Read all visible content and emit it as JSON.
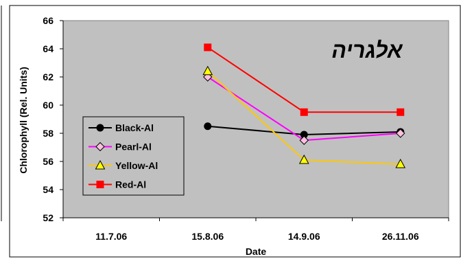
{
  "chart_data": {
    "type": "line",
    "title": "אלגריה",
    "xlabel": "Date",
    "ylabel": "Chlorophyll (Rel. Units)",
    "categories": [
      "11.7.06",
      "15.8.06",
      "14.9.06",
      "26.11.06"
    ],
    "ylim": [
      52,
      66
    ],
    "yticks": [
      52,
      54,
      56,
      58,
      60,
      62,
      64,
      66
    ],
    "grid": false,
    "legend_position": "left",
    "series": [
      {
        "name": "Black-Al",
        "color": "#000000",
        "marker": "circle",
        "marker_fill": "#000000",
        "values": [
          null,
          58.5,
          57.9,
          58.1
        ]
      },
      {
        "name": "Pearl-Al",
        "color": "#ff00ff",
        "marker": "diamond",
        "marker_fill": "#ffc0e0",
        "values": [
          null,
          62.0,
          57.5,
          58.0
        ]
      },
      {
        "name": "Yellow-Al",
        "color": "#ffc800",
        "marker": "triangle",
        "marker_fill": "#ffff00",
        "values": [
          null,
          62.4,
          56.1,
          55.8
        ]
      },
      {
        "name": "Red-Al",
        "color": "#ff0000",
        "marker": "square",
        "marker_fill": "#ff0000",
        "values": [
          null,
          64.1,
          59.5,
          59.5
        ]
      }
    ],
    "colors": {
      "plot_background": "#c0c0c0",
      "page_background": "#ffffff",
      "axis": "#000000"
    }
  }
}
